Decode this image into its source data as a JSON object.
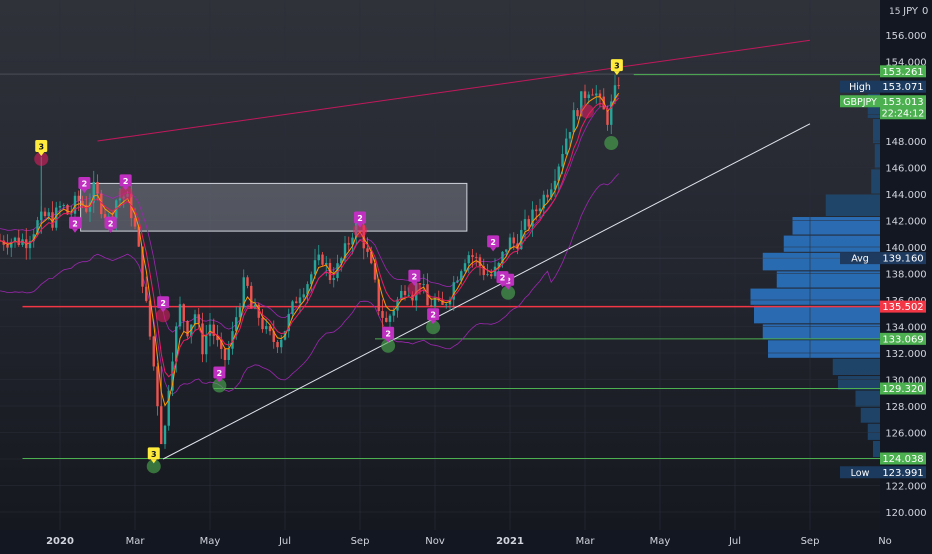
{
  "chart_data": {
    "type": "candlestick",
    "symbol": "GBPJPY",
    "currency_label": "JPY",
    "scale_icon": "15",
    "ylim": [
      119,
      158
    ],
    "y_ticks": [
      "156.000",
      "154.000",
      "152.000",
      "150.000",
      "148.000",
      "146.000",
      "144.000",
      "142.000",
      "140.000",
      "138.000",
      "136.000",
      "134.000",
      "132.000",
      "130.000",
      "128.000",
      "126.000",
      "124.000",
      "122.000",
      "120.000"
    ],
    "x_ticks": [
      {
        "label": "2020",
        "month": 0,
        "bold": true
      },
      {
        "label": "Mar",
        "month": 2
      },
      {
        "label": "May",
        "month": 4
      },
      {
        "label": "Jul",
        "month": 6
      },
      {
        "label": "Sep",
        "month": 8
      },
      {
        "label": "Nov",
        "month": 10
      },
      {
        "label": "2021",
        "month": 12,
        "bold": true
      },
      {
        "label": "Mar",
        "month": 14
      },
      {
        "label": "May",
        "month": 16
      },
      {
        "label": "Jul",
        "month": 18
      },
      {
        "label": "Sep",
        "month": 20
      },
      {
        "label": "No",
        "month": 22
      }
    ],
    "price_path": [
      [
        -0.9,
        140.5
      ],
      [
        -0.6,
        141.8
      ],
      [
        -0.35,
        142.4
      ],
      [
        -0.2,
        142.0
      ],
      [
        0.05,
        143.2
      ],
      [
        0.25,
        142.3
      ],
      [
        0.45,
        143.6
      ],
      [
        0.7,
        143.0
      ],
      [
        0.9,
        144.3
      ],
      [
        1.1,
        143.1
      ],
      [
        1.3,
        142.0
      ],
      [
        1.5,
        143.6
      ],
      [
        1.75,
        143.9
      ],
      [
        1.95,
        142.2
      ],
      [
        2.1,
        139.6
      ],
      [
        2.3,
        135.5
      ],
      [
        2.5,
        131.0
      ],
      [
        2.65,
        127.0
      ],
      [
        2.75,
        124.2
      ],
      [
        2.85,
        128.5
      ],
      [
        3.0,
        132.0
      ],
      [
        3.2,
        135.4
      ],
      [
        3.4,
        133.8
      ],
      [
        3.6,
        135.0
      ],
      [
        3.8,
        132.4
      ],
      [
        4.0,
        134.2
      ],
      [
        4.2,
        132.6
      ],
      [
        4.35,
        131.2
      ],
      [
        4.55,
        132.6
      ],
      [
        4.75,
        135.5
      ],
      [
        4.95,
        137.6
      ],
      [
        5.1,
        135.3
      ],
      [
        5.3,
        134.8
      ],
      [
        5.5,
        133.5
      ],
      [
        5.75,
        132.8
      ],
      [
        5.95,
        133.5
      ],
      [
        6.15,
        135.0
      ],
      [
        6.35,
        136.5
      ],
      [
        6.6,
        137.4
      ],
      [
        6.8,
        138.5
      ],
      [
        7.0,
        139.2
      ],
      [
        7.2,
        137.8
      ],
      [
        7.4,
        138.4
      ],
      [
        7.65,
        140.0
      ],
      [
        7.85,
        141.6
      ],
      [
        8.0,
        141.5
      ],
      [
        8.15,
        139.8
      ],
      [
        8.35,
        137.8
      ],
      [
        8.5,
        135.5
      ],
      [
        8.7,
        134.2
      ],
      [
        8.85,
        135.2
      ],
      [
        9.05,
        136.2
      ],
      [
        9.25,
        137.3
      ],
      [
        9.4,
        136.5
      ],
      [
        9.6,
        137.6
      ],
      [
        9.8,
        135.5
      ],
      [
        10.0,
        136.0
      ],
      [
        10.15,
        135.1
      ],
      [
        10.4,
        136.6
      ],
      [
        10.6,
        138.0
      ],
      [
        10.85,
        139.6
      ],
      [
        11.05,
        139.2
      ],
      [
        11.3,
        138.2
      ],
      [
        11.5,
        137.8
      ],
      [
        11.7,
        138.5
      ],
      [
        11.95,
        140.5
      ],
      [
        12.15,
        140.2
      ],
      [
        12.35,
        141.3
      ],
      [
        12.6,
        142.3
      ],
      [
        12.85,
        143.6
      ],
      [
        13.05,
        144.5
      ],
      [
        13.3,
        146.4
      ],
      [
        13.55,
        148.8
      ],
      [
        13.75,
        150.2
      ],
      [
        13.95,
        151.4
      ],
      [
        14.15,
        152.2
      ],
      [
        14.3,
        151.5
      ],
      [
        14.45,
        150.4
      ],
      [
        14.6,
        149.7
      ],
      [
        14.8,
        151.6
      ],
      [
        14.95,
        153.1
      ]
    ],
    "horizontal_levels": [
      {
        "price": 153.013,
        "color": "#4caf50",
        "from_month": 15.3,
        "width": 1
      },
      {
        "price": 135.502,
        "color": "#f23645",
        "from_month": -1,
        "width": 1.5
      },
      {
        "price": 133.069,
        "color": "#4caf50",
        "from_month": 8.4,
        "width": 1
      },
      {
        "price": 129.32,
        "color": "#4caf50",
        "from_month": 4.1,
        "width": 1
      },
      {
        "price": 124.038,
        "color": "#4caf50",
        "from_month": -1,
        "width": 1
      }
    ],
    "trendlines": [
      {
        "from": [
          1.0,
          148.0
        ],
        "to": [
          20.0,
          155.6
        ],
        "color": "#c2185b"
      },
      {
        "from": [
          2.75,
          124.0
        ],
        "to": [
          20.0,
          149.3
        ],
        "color": "#e0e3eb"
      }
    ],
    "rectangle": {
      "month_from": 0.55,
      "month_to": 10.85,
      "price_top": 144.8,
      "price_bottom": 141.2
    },
    "bands": {
      "upper_offset": 0.9,
      "lower_offset": -3.8
    },
    "markers": [
      {
        "label": "3",
        "kind": "yellow",
        "month": -0.5,
        "price": 147.4,
        "dot": "red"
      },
      {
        "label": "2",
        "kind": "purple",
        "month": 0.65,
        "price": 144.6,
        "dot": "none"
      },
      {
        "label": "2",
        "kind": "purple",
        "month": 1.75,
        "price": 144.8,
        "dot": "red"
      },
      {
        "label": "2",
        "kind": "purple",
        "month": 2.75,
        "price": 135.6,
        "dot": "red"
      },
      {
        "label": "2",
        "kind": "purple",
        "month": 8.0,
        "price": 142.0,
        "dot": "red"
      },
      {
        "label": "2",
        "kind": "purple",
        "month": 9.45,
        "price": 137.6,
        "dot": "red"
      },
      {
        "label": "2",
        "kind": "purple",
        "month": 11.55,
        "price": 140.2,
        "dot": "none"
      },
      {
        "label": "3",
        "kind": "yellow",
        "month": 2.5,
        "price": 124.2,
        "dot": "green"
      },
      {
        "label": "2",
        "kind": "purple",
        "month": 4.25,
        "price": 130.3,
        "dot": "green"
      },
      {
        "label": "2",
        "kind": "purple",
        "month": 8.75,
        "price": 133.3,
        "dot": "green"
      },
      {
        "label": "2",
        "kind": "purple",
        "month": 9.95,
        "price": 134.7,
        "dot": "green"
      },
      {
        "label": "2",
        "kind": "purple",
        "month": 11.95,
        "price": 137.3,
        "dot": "green"
      },
      {
        "label": "2",
        "kind": "purple",
        "month": 0.4,
        "price": 141.6,
        "dot": "none"
      },
      {
        "label": "2",
        "kind": "purple",
        "month": 1.35,
        "price": 141.6,
        "dot": "none"
      },
      {
        "label": "2",
        "kind": "purple",
        "month": 11.8,
        "price": 137.5,
        "dot": "none"
      },
      {
        "label": "3",
        "kind": "yellow",
        "month": 14.85,
        "price": 153.5,
        "dot": "none"
      },
      {
        "label": "",
        "kind": "dot",
        "month": 14.05,
        "price": 151.0,
        "dot": "red"
      },
      {
        "label": "",
        "kind": "dot",
        "month": 14.7,
        "price": 148.6,
        "dot": "green"
      }
    ],
    "volume_profile": [
      {
        "price_from": 149.7,
        "price_to": 151.6,
        "value": 0.07
      },
      {
        "price_from": 147.8,
        "price_to": 149.7,
        "value": 0.04
      },
      {
        "price_from": 145.9,
        "price_to": 147.8,
        "value": 0.03
      },
      {
        "price_from": 144.0,
        "price_to": 145.9,
        "value": 0.05
      },
      {
        "price_from": 142.3,
        "price_to": 144.0,
        "value": 0.31
      },
      {
        "price_from": 140.9,
        "price_to": 142.3,
        "value": 0.5
      },
      {
        "price_from": 139.6,
        "price_to": 140.9,
        "value": 0.55
      },
      {
        "price_from": 138.2,
        "price_to": 139.6,
        "value": 0.67
      },
      {
        "price_from": 136.9,
        "price_to": 138.2,
        "value": 0.59
      },
      {
        "price_from": 135.6,
        "price_to": 136.9,
        "value": 0.74
      },
      {
        "price_from": 134.2,
        "price_to": 135.6,
        "value": 0.72
      },
      {
        "price_from": 133.0,
        "price_to": 134.2,
        "value": 0.67
      },
      {
        "price_from": 131.6,
        "price_to": 133.0,
        "value": 0.64
      },
      {
        "price_from": 130.3,
        "price_to": 131.6,
        "value": 0.27
      },
      {
        "price_from": 129.2,
        "price_to": 130.3,
        "value": 0.24
      },
      {
        "price_from": 127.9,
        "price_to": 129.2,
        "value": 0.14
      },
      {
        "price_from": 126.7,
        "price_to": 127.9,
        "value": 0.11
      },
      {
        "price_from": 125.4,
        "price_to": 126.7,
        "value": 0.07
      },
      {
        "price_from": 124.1,
        "price_to": 125.4,
        "value": 0.04
      }
    ],
    "price_labels": [
      {
        "title": "",
        "value": "153.261",
        "price": 153.261,
        "bg": "#4caf50",
        "color": "#ffffff"
      },
      {
        "title": "High",
        "value": "153.071",
        "price": 152.1,
        "bg": "#1c3a5e",
        "color": "#ffffff"
      },
      {
        "title": "GBPJPY",
        "value": "153.013",
        "price": 151.0,
        "bg": "#4caf50",
        "color": "#ffffff",
        "sub": "22:24:12"
      },
      {
        "title": "Avg",
        "value": "139.160",
        "price": 139.16,
        "bg": "#1e3a5f",
        "color": "#ffffff"
      },
      {
        "title": "",
        "value": "135.502",
        "price": 135.502,
        "bg": "#f23645",
        "color": "#ffffff"
      },
      {
        "title": "",
        "value": "133.069",
        "price": 133.069,
        "bg": "#4caf50",
        "color": "#ffffff"
      },
      {
        "title": "",
        "value": "129.320",
        "price": 129.32,
        "bg": "#4caf50",
        "color": "#ffffff"
      },
      {
        "title": "",
        "value": "124.038",
        "price": 124.038,
        "bg": "#4caf50",
        "color": "#ffffff"
      },
      {
        "title": "Low",
        "value": "123.991",
        "price": 123.0,
        "bg": "#1c3a5e",
        "color": "#ffffff"
      }
    ],
    "colors": {
      "up": "#26a69a",
      "down": "#ef5350",
      "ema_fast": "#ff9800",
      "ema_slow": "#e91e63",
      "band": "#9c27b0",
      "grid": "#2a2e39",
      "axis_text": "#d1d4dc"
    }
  }
}
